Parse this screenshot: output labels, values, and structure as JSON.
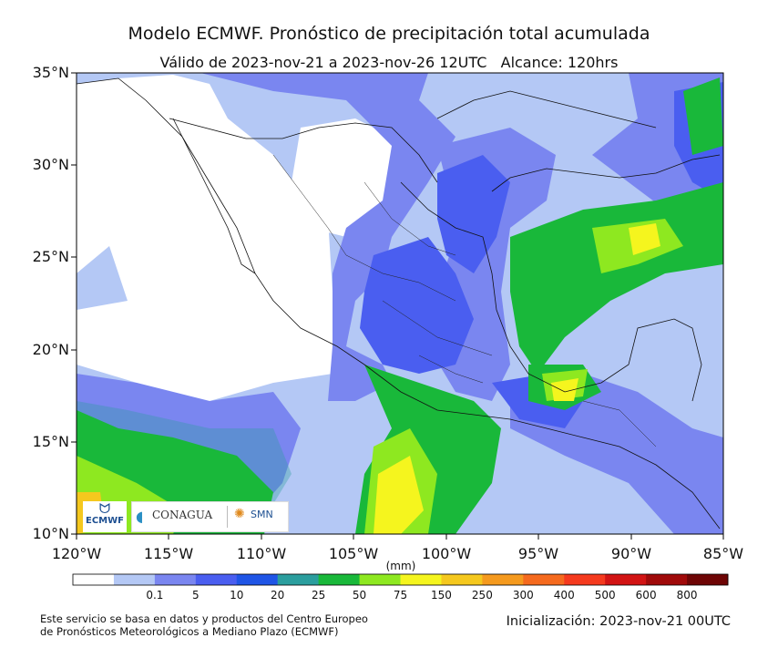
{
  "title": "Modelo ECMWF. Pronóstico de precipitación total acumulada",
  "subtitle": "Válido de 2023-nov-21 a 2023-nov-26 12UTC   Alcance: 120hrs",
  "y_ticks": [
    "35°N",
    "30°N",
    "25°N",
    "20°N",
    "15°N",
    "10°N"
  ],
  "x_ticks": [
    "120°W",
    "115°W",
    "110°W",
    "105°W",
    "100°W",
    "95°W",
    "90°W",
    "85°W"
  ],
  "colorbar": {
    "unit": "(mm)",
    "labels": [
      "0.1",
      "5",
      "10",
      "20",
      "25",
      "50",
      "75",
      "150",
      "250",
      "300",
      "400",
      "500",
      "600",
      "800"
    ],
    "colors": [
      "#ffffff",
      "#b4c8f5",
      "#7a86f0",
      "#4a5ef0",
      "#1f55e6",
      "#2b9e9e",
      "#19b83a",
      "#8ee820",
      "#f5f51e",
      "#f5c81e",
      "#f59a1e",
      "#f56a1e",
      "#f53a1e",
      "#d21414",
      "#a00a0a",
      "#6e0505"
    ]
  },
  "logos": {
    "ecmwf": "ECMWF",
    "conagua": "CONAGUA",
    "smn": "SMN"
  },
  "footnote": {
    "line1": "Este servicio se basa en datos y productos del Centro Europeo",
    "line2": "de Pronósticos Meteorológicos a Mediano Plazo (ECMWF)"
  },
  "initialization": "Inicialización: 2023-nov-21 00UTC"
}
